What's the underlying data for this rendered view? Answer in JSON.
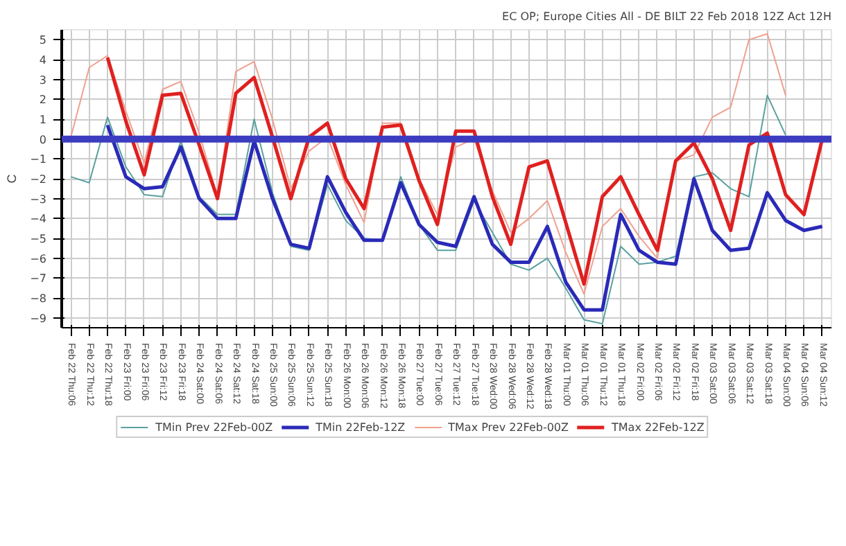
{
  "chart_data": {
    "type": "line",
    "title": "EC OP; Europe Cities All - DE BILT 22 Feb 2018 12Z Act 12H",
    "ylabel": "C",
    "categories": [
      "Feb 22 Thu:06",
      "Feb 22 Thu:12",
      "Feb 22 Thu:18",
      "Feb 23 Fri:00",
      "Feb 23 Fri:06",
      "Feb 23 Fri:12",
      "Feb 23 Fri:18",
      "Feb 24 Sat:00",
      "Feb 24 Sat:06",
      "Feb 24 Sat:12",
      "Feb 24 Sat:18",
      "Feb 25 Sun:00",
      "Feb 25 Sun:06",
      "Feb 25 Sun:12",
      "Feb 25 Sun:18",
      "Feb 26 Mon:00",
      "Feb 26 Mon:06",
      "Feb 26 Mon:12",
      "Feb 26 Mon:18",
      "Feb 27 Tue:00",
      "Feb 27 Tue:06",
      "Feb 27 Tue:12",
      "Feb 27 Tue:18",
      "Feb 28 Wed:00",
      "Feb 28 Wed:06",
      "Feb 28 Wed:12",
      "Feb 28 Wed:18",
      "Mar 01 Thu:00",
      "Mar 01 Thu:06",
      "Mar 01 Thu:12",
      "Mar 01 Thu:18",
      "Mar 02 Fri:00",
      "Mar 02 Fri:06",
      "Mar 02 Fri:12",
      "Mar 02 Fri:18",
      "Mar 03 Sat:00",
      "Mar 03 Sat:06",
      "Mar 03 Sat:12",
      "Mar 03 Sat:18",
      "Mar 04 Sun:00",
      "Mar 04 Sun:06",
      "Mar 04 Sun:12"
    ],
    "series": [
      {
        "name": "TMin Prev 22Feb-00Z",
        "color": "#5aa0a0",
        "values": [
          -1.9,
          -2.2,
          1.1,
          -1.4,
          -2.8,
          -2.9,
          -0.1,
          -2.9,
          -3.8,
          -3.8,
          1.0,
          -2.7,
          -5.4,
          -5.6,
          -2.3,
          -4.1,
          -5.0,
          -5.1,
          -1.9,
          -4.3,
          -5.6,
          -5.6,
          -3.1,
          -4.7,
          -6.3,
          -6.6,
          -6.0,
          -7.5,
          -9.1,
          -9.3,
          -5.4,
          -6.3,
          -6.2,
          -5.9,
          -1.9,
          -1.7,
          -2.5,
          -2.9,
          2.2,
          0.2,
          null,
          null
        ]
      },
      {
        "name": "TMin 22Feb-12Z",
        "color": "#2a2ab8",
        "values": [
          null,
          null,
          0.7,
          -1.9,
          -2.5,
          -2.4,
          -0.4,
          -3.0,
          -4.0,
          -4.0,
          -0.1,
          -3.0,
          -5.3,
          -5.5,
          -1.9,
          -3.7,
          -5.1,
          -5.1,
          -2.2,
          -4.3,
          -5.2,
          -5.4,
          -2.9,
          -5.3,
          -6.2,
          -6.2,
          -4.4,
          -7.2,
          -8.6,
          -8.6,
          -3.8,
          -5.6,
          -6.2,
          -6.3,
          -2.0,
          -4.6,
          -5.6,
          -5.5,
          -2.7,
          -4.1,
          -4.6,
          -4.4
        ]
      },
      {
        "name": "TMax Prev 22Feb-00Z",
        "color": "#f0a090",
        "values": [
          0.1,
          3.6,
          4.2,
          1.4,
          -1.2,
          2.5,
          2.9,
          0.3,
          -2.9,
          3.4,
          3.9,
          1.0,
          -2.5,
          -0.6,
          0.1,
          -2.3,
          -4.2,
          0.8,
          0.8,
          -2.0,
          -3.8,
          -0.4,
          0.0,
          -2.6,
          -4.7,
          -4.0,
          -3.1,
          -5.7,
          -7.8,
          -4.4,
          -3.5,
          -4.9,
          -6.0,
          -1.1,
          -0.8,
          1.1,
          1.6,
          5.0,
          5.3,
          2.2,
          null,
          null
        ]
      },
      {
        "name": "TMax 22Feb-12Z",
        "color": "#e02020",
        "values": [
          null,
          null,
          4.1,
          0.9,
          -1.8,
          2.2,
          2.3,
          -0.3,
          -3.0,
          2.3,
          3.1,
          0.1,
          -3.0,
          0.1,
          0.8,
          -2.0,
          -3.5,
          0.6,
          0.7,
          -2.1,
          -4.3,
          0.4,
          0.4,
          -2.9,
          -5.3,
          -1.4,
          -1.1,
          -4.2,
          -7.3,
          -2.9,
          -1.9,
          -3.8,
          -5.6,
          -1.1,
          -0.2,
          -2.0,
          -4.6,
          -0.3,
          0.3,
          -2.8,
          -3.8,
          0.0
        ]
      }
    ],
    "ylim": [
      -9.5,
      5.5
    ],
    "yticks": [
      -9,
      -8,
      -7,
      -6,
      -5,
      -4,
      -3,
      -2,
      -1,
      0,
      1,
      2,
      3,
      4,
      5
    ],
    "grid": true,
    "legend": "bottom",
    "marker": "none",
    "line_style": "solid",
    "ref_lines": [
      {
        "axis": "y",
        "value": 0,
        "color": "#3c3cc0"
      }
    ]
  }
}
